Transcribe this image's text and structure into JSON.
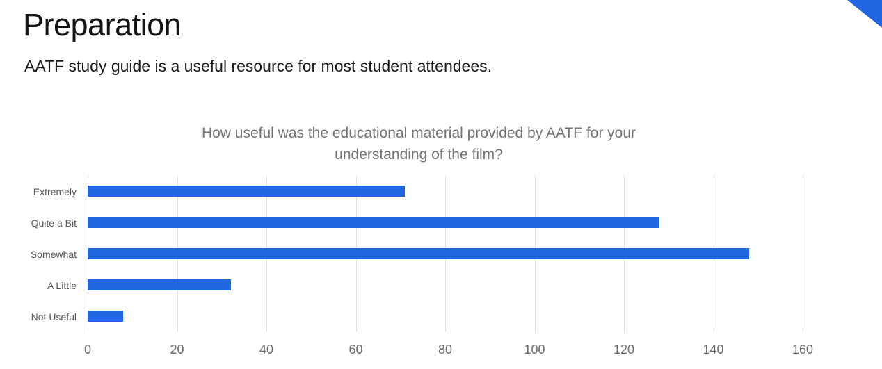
{
  "slide": {
    "title": "Preparation",
    "subtitle": "AATF study guide is a useful resource for most student attendees."
  },
  "decor": {
    "corner_triangle_color": "#2166e1"
  },
  "chart_data": {
    "type": "bar",
    "orientation": "horizontal",
    "title": "How useful was the educational material provided by AATF for your\nunderstanding of the film?",
    "categories": [
      "Extremely",
      "Quite a Bit",
      "Somewhat",
      "A Little",
      "Not Useful"
    ],
    "values": [
      71,
      128,
      148,
      32,
      8
    ],
    "xlim": [
      0,
      160
    ],
    "xticks": [
      0,
      20,
      40,
      60,
      80,
      100,
      120,
      140,
      160
    ],
    "grid": true,
    "legend": "none",
    "colors": {
      "bar": "#2166e1",
      "gridline": "#e0e0e0",
      "title": "#757575",
      "category_label": "#575757",
      "tick_label": "#6e6e6e",
      "background": "#ffffff"
    }
  }
}
